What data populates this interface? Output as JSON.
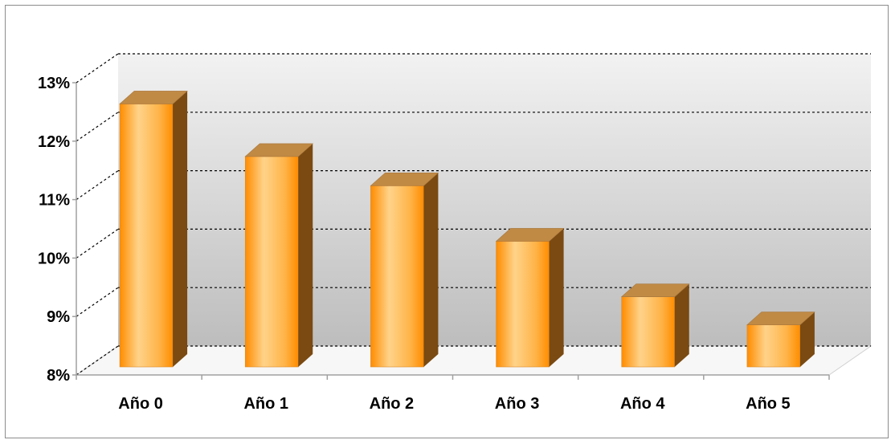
{
  "chart_data": {
    "type": "bar",
    "style": "3d-column",
    "categories": [
      "Año 0",
      "Año 1",
      "Año 2",
      "Año 3",
      "Año 4",
      "Año 5"
    ],
    "values": [
      12.5,
      11.6,
      11.1,
      10.15,
      9.2,
      8.72
    ],
    "ylim": [
      8,
      13
    ],
    "yticks": [
      8,
      9,
      10,
      11,
      12,
      13
    ],
    "ytick_labels": [
      "8%",
      "9%",
      "10%",
      "11%",
      "12%",
      "13%"
    ],
    "title": "",
    "xlabel": "",
    "ylabel": "",
    "grid": true,
    "legend": "none",
    "colors": {
      "bar_front": "#FFB347",
      "bar_front_light": "#FFD38A",
      "bar_edge": "#FF8C00",
      "bar_top": "#C08A45",
      "bar_side": "#7A4A12",
      "wall_top": "#f2f2f2",
      "wall_bottom": "#bdbdbd",
      "floor": "#f7f7f7",
      "grid": "#000000"
    }
  }
}
